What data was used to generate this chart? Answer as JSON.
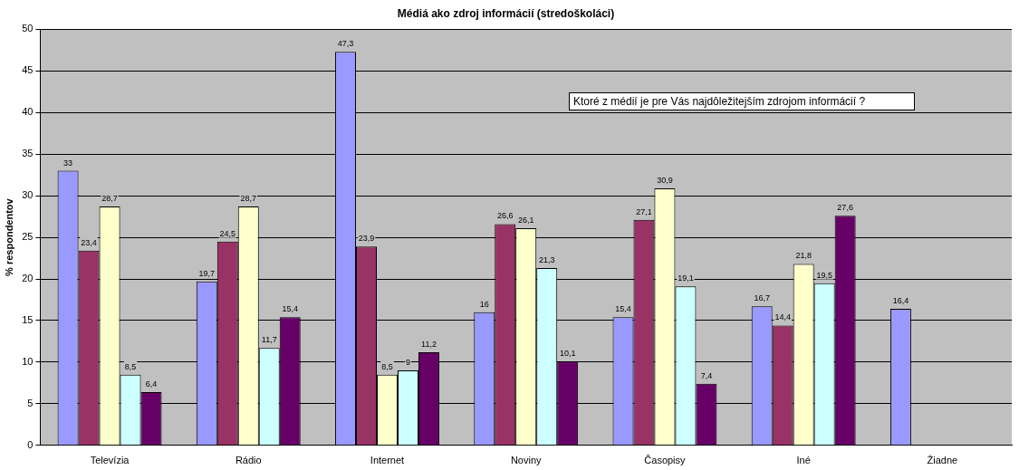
{
  "chart_data": {
    "type": "bar",
    "title": "Médiá ako zdroj informácií (stredoškoláci)",
    "ylabel": "% respondentov",
    "categories": [
      "Televízia",
      "Rádio",
      "Internet",
      "Noviny",
      "Časopisy",
      "Iné",
      "Žiadne"
    ],
    "series": [
      {
        "color": "#9999ff",
        "values": [
          33,
          19.7,
          47.3,
          16,
          15.4,
          16.7,
          16.4
        ],
        "value_labels": [
          "33",
          "19,7",
          "47,3",
          "16",
          "15,4",
          "16,7",
          "16,4"
        ]
      },
      {
        "color": "#993366",
        "values": [
          23.4,
          24.5,
          23.9,
          26.6,
          27.1,
          14.4,
          null
        ],
        "value_labels": [
          "23,4",
          "24,5",
          "23,9",
          "26,6",
          "27,1",
          "14,4",
          null
        ]
      },
      {
        "color": "#ffffcc",
        "values": [
          28.7,
          28.7,
          8.5,
          26.1,
          30.9,
          21.8,
          null
        ],
        "value_labels": [
          "28,7",
          "28,7",
          "8,5",
          "26,1",
          "30,9",
          "21,8",
          null
        ]
      },
      {
        "color": "#ccffff",
        "values": [
          8.5,
          11.7,
          9,
          21.3,
          19.1,
          19.5,
          null
        ],
        "value_labels": [
          "8,5",
          "11,7",
          "9",
          "21,3",
          "19,1",
          "19,5",
          null
        ]
      },
      {
        "color": "#660066",
        "values": [
          6.4,
          15.4,
          11.2,
          10.1,
          7.4,
          27.6,
          null
        ],
        "value_labels": [
          "6,4",
          "15,4",
          "11,2",
          "10,1",
          "7,4",
          "27,6",
          null
        ]
      }
    ],
    "ylim": [
      0,
      50
    ],
    "yticks": [
      0,
      5,
      10,
      15,
      20,
      25,
      30,
      35,
      40,
      45,
      50
    ],
    "grid": "y",
    "legend": false,
    "annotations": [
      "Ktoré z médií je pre Vás najdôležitejším zdrojom informácií ?"
    ]
  }
}
